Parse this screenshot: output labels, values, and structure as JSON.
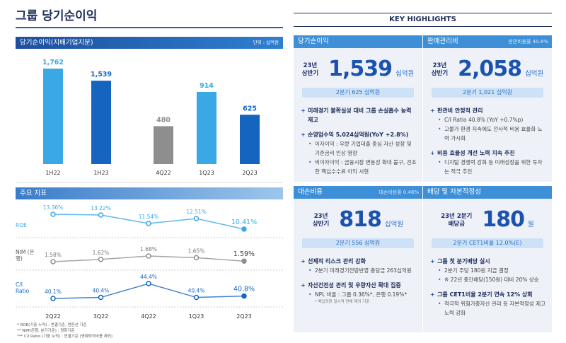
{
  "title": "그룹 당기순이익",
  "highlights_title": "KEY HIGHLIGHTS",
  "chart_data": [
    {
      "type": "bar",
      "title": "당기순이익(지배기업지분)",
      "unit": "단위 : 십억원",
      "categories": [
        "1H22",
        "1H23",
        "4Q22",
        "1Q23",
        "2Q23"
      ],
      "values": [
        1762,
        1539,
        480,
        914,
        625
      ],
      "value_labels": [
        "1,762",
        "1,539",
        "480",
        "914",
        "625"
      ],
      "colors": [
        "#3aa8e4",
        "#1565c0",
        "#8e8e8e",
        "#3aa8e4",
        "#1565c0"
      ]
    },
    {
      "type": "line",
      "title": "주요 지표",
      "categories": [
        "2Q22",
        "3Q22",
        "4Q22",
        "1Q23",
        "2Q23"
      ],
      "series": [
        {
          "name": "ROE",
          "color": "#3aa8e4",
          "values": [
            13.36,
            13.22,
            11.54,
            12.51,
            10.41
          ],
          "value_labels": [
            "13.36%",
            "13.22%",
            "11.54%",
            "12.51%",
            "10.41%"
          ]
        },
        {
          "name": "NIM (은행)",
          "color": "#8e8e8e",
          "values": [
            1.58,
            1.62,
            1.68,
            1.65,
            1.59
          ],
          "value_labels": [
            "1.58%",
            "1.62%",
            "1.68%",
            "1.65%",
            "1.59%"
          ]
        },
        {
          "name": "C/I Ratio",
          "color": "#1565c0",
          "values": [
            40.1,
            40.4,
            44.4,
            40.4,
            40.8
          ],
          "value_labels": [
            "40.1%",
            "40.4%",
            "44.4%",
            "40.4%",
            "40.8%"
          ]
        }
      ]
    }
  ],
  "footnotes": [
    "* ROE(기중 누적) : 연결기준, 연환산 기준",
    "** NIM(은행, 분기기준) : 원화기준",
    "*** C/I Ratio (기중 누적) : 연결기준 (명예퇴직비용 제외)"
  ],
  "highlights": [
    {
      "title": "당기순이익",
      "period": [
        "23년",
        "상반기"
      ],
      "value": "1,539",
      "unit": "십억원",
      "sub": "2분기 625 십억원",
      "bullets": [
        {
          "text": "미래경기 불확실성 대비 그룹 손실흡수 능력 제고",
          "items": []
        },
        {
          "text": "순영업수익 5,024십억원(YoY +2.8%)",
          "items": [
            "이자이익 : 우량 기업대출 중심 자산 성장 및 기준금리 인상 영향",
            "비이자이익 : 금융시장 변동성 확대 불구, 견조한 핵심수수료 이익 시현"
          ]
        }
      ]
    },
    {
      "title": "판매관리비",
      "badge": "판관비용률 40.8%",
      "period": [
        "23년",
        "상반기"
      ],
      "value": "2,058",
      "unit": "십억원",
      "sub": "2분기 1,021 십억원",
      "bullets": [
        {
          "text": "판관비 안정적 관리",
          "items": [
            "C/I Ratio 40.8% (YoY +0.7%p)",
            "고물가 환경 지속에도 전사적 비용 효율화 노력 가시화"
          ]
        },
        {
          "text": "비용 효율성 개선 노력 지속 추진",
          "items": [
            "디지털 경쟁력 강화 등 미래성장을 위한 투자는 적극 추진"
          ]
        }
      ]
    },
    {
      "title": "대손비용",
      "badge": "대손비용률 0.48%",
      "period": [
        "23년",
        "상반기"
      ],
      "value": "818",
      "unit": "십억원",
      "sub": "2분기 556 십억원",
      "bullets": [
        {
          "text": "선제적 리스크 관리 강화",
          "items": [
            "2분기 미래경기전망반영 충당금 263십억원"
          ]
        },
        {
          "text": "자산건전성 관리 및 우량자산 확대 집중",
          "items": [
            "NPL 비율 : 그룹 0.36%*, 은행 0.19%*"
          ],
          "note": "* 매입외환 일시적 연체 제외 기준"
        }
      ]
    },
    {
      "title": "배당 및 자본적정성",
      "period": [
        "23년 2분기",
        "배당금"
      ],
      "value": "180",
      "unit": "원",
      "sub": "2분기 CET1비율 12.0%(E)",
      "bullets": [
        {
          "text": "그룹 첫 분기배당 실시",
          "items": [
            "2분기 주당 180원 지급 결정",
            "※ 22년 중간배당(150원) 대비 20% 상승"
          ]
        },
        {
          "text": "그룹 CET1비율 2분기 연속 12% 상회",
          "items": [
            "적극적 위험가중자산 관리 등 자본적정성 제고 노력 강화"
          ]
        }
      ]
    }
  ]
}
